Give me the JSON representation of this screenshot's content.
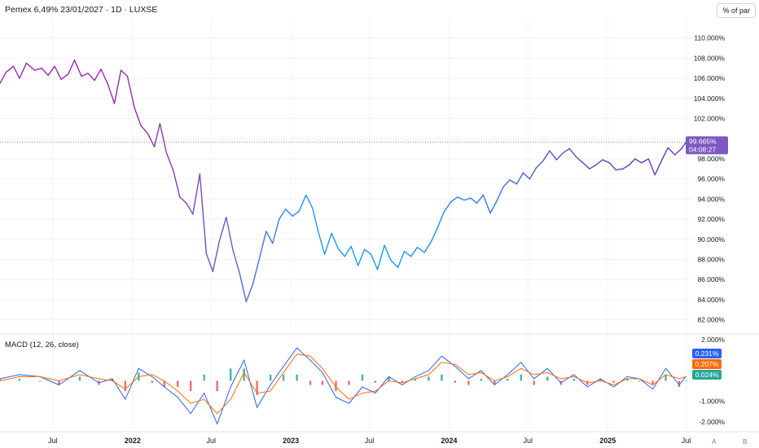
{
  "header": {
    "title": "Pemex 6,49% 23/01/2027 · 1D · LUXSE",
    "unit_button": "% of par"
  },
  "macd": {
    "title": "MACD (12, 26, close)"
  },
  "axis_buttons": {
    "auto": "A",
    "log": "B"
  },
  "colors": {
    "price_start": "#9c27b0",
    "price_mid": "#2196f3",
    "price_end": "#673ab7",
    "macd_line": "#2962ff",
    "signal_line": "#ff6d00",
    "hist_pos": "#26a69a",
    "hist_neg": "#ef5350",
    "last_price_label": "#7e57c2",
    "macd_label": "#2962ff",
    "signal_label": "#ff6d00",
    "hist_label": "#26a69a"
  },
  "chart_data": [
    {
      "type": "line",
      "title": "Pemex 6,49% 23/01/2027 · 1D · LUXSE",
      "ylabel": "% of par",
      "ylim": [
        81,
        112
      ],
      "x_range": [
        "2021-03-01",
        "2025-07-15"
      ],
      "yticks": [
        "82.000%",
        "84.000%",
        "86.000%",
        "88.000%",
        "90.000%",
        "92.000%",
        "94.000%",
        "96.000%",
        "98.000%",
        "100.000%",
        "102.000%",
        "104.000%",
        "106.000%",
        "108.000%",
        "110.000%"
      ],
      "xticks": [
        {
          "date": "2021-07-01",
          "label": "Jul"
        },
        {
          "date": "2022-01-01",
          "label": "2022"
        },
        {
          "date": "2022-07-01",
          "label": "Jul"
        },
        {
          "date": "2023-01-01",
          "label": "2023"
        },
        {
          "date": "2023-07-01",
          "label": "Jul"
        },
        {
          "date": "2024-01-01",
          "label": "2024"
        },
        {
          "date": "2024-07-01",
          "label": "Jul"
        },
        {
          "date": "2025-01-01",
          "label": "2025"
        },
        {
          "date": "2025-07-01",
          "label": "Jul"
        }
      ],
      "last_price": {
        "value": 99.665,
        "label": "99.665%",
        "countdown": "04:08:27"
      },
      "grid": true,
      "series": [
        {
          "x": [
            "2021-03-01",
            "2021-03-15",
            "2021-04-01",
            "2021-04-15",
            "2021-05-01",
            "2021-05-20",
            "2021-06-05",
            "2021-06-20",
            "2021-07-05",
            "2021-07-20",
            "2021-08-05",
            "2021-08-20",
            "2021-09-05",
            "2021-09-20",
            "2021-10-05",
            "2021-10-20",
            "2021-11-05",
            "2021-11-20",
            "2021-12-05",
            "2021-12-20",
            "2022-01-05",
            "2022-01-20",
            "2022-02-05",
            "2022-02-20",
            "2022-03-05",
            "2022-03-20",
            "2022-04-05",
            "2022-04-20",
            "2022-05-05",
            "2022-05-20",
            "2022-06-05",
            "2022-06-20",
            "2022-07-05",
            "2022-07-20",
            "2022-08-05",
            "2022-08-20",
            "2022-09-05",
            "2022-09-20",
            "2022-10-05",
            "2022-10-20",
            "2022-11-05",
            "2022-11-20",
            "2022-12-05",
            "2022-12-20",
            "2023-01-05",
            "2023-01-20",
            "2023-02-05",
            "2023-02-20",
            "2023-03-05",
            "2023-03-20",
            "2023-04-05",
            "2023-04-20",
            "2023-05-05",
            "2023-05-20",
            "2023-06-05",
            "2023-06-20",
            "2023-07-05",
            "2023-07-20",
            "2023-08-05",
            "2023-08-20",
            "2023-09-05",
            "2023-09-20",
            "2023-10-05",
            "2023-10-20",
            "2023-11-05",
            "2023-11-20",
            "2023-12-05",
            "2023-12-20",
            "2024-01-05",
            "2024-01-20",
            "2024-02-05",
            "2024-02-20",
            "2024-03-05",
            "2024-03-20",
            "2024-04-05",
            "2024-04-20",
            "2024-05-05",
            "2024-05-20",
            "2024-06-05",
            "2024-06-20",
            "2024-07-05",
            "2024-07-20",
            "2024-08-05",
            "2024-08-20",
            "2024-09-05",
            "2024-09-20",
            "2024-10-05",
            "2024-10-20",
            "2024-11-05",
            "2024-11-20",
            "2024-12-05",
            "2024-12-20",
            "2025-01-05",
            "2025-01-20",
            "2025-02-05",
            "2025-02-20",
            "2025-03-05",
            "2025-03-20",
            "2025-04-05",
            "2025-04-20",
            "2025-05-05",
            "2025-05-20",
            "2025-06-05",
            "2025-06-20",
            "2025-07-01"
          ],
          "values": [
            105.5,
            106.6,
            107.2,
            106.0,
            107.5,
            106.8,
            107.0,
            106.3,
            107.2,
            105.9,
            106.4,
            107.8,
            106.2,
            106.5,
            105.8,
            106.9,
            105.4,
            103.5,
            106.8,
            106.2,
            103.1,
            101.3,
            100.5,
            99.2,
            101.5,
            98.6,
            96.8,
            94.2,
            93.6,
            92.5,
            96.5,
            88.6,
            86.8,
            89.8,
            92.2,
            89.0,
            86.6,
            83.8,
            85.5,
            88.0,
            90.8,
            89.6,
            92.0,
            93.0,
            92.3,
            92.8,
            94.4,
            93.1,
            90.8,
            88.5,
            90.6,
            89.1,
            88.3,
            89.3,
            87.4,
            89.0,
            88.5,
            87.0,
            89.4,
            87.9,
            87.2,
            88.8,
            88.3,
            89.2,
            88.7,
            89.7,
            91.1,
            92.7,
            93.7,
            94.2,
            93.9,
            94.1,
            93.6,
            94.4,
            92.6,
            93.8,
            95.2,
            95.9,
            95.5,
            96.6,
            96.0,
            97.1,
            97.8,
            98.8,
            97.9,
            98.6,
            99.0,
            98.2,
            97.6,
            97.0,
            97.4,
            97.9,
            97.6,
            96.9,
            97.0,
            97.4,
            98.0,
            97.6,
            98.0,
            96.4,
            97.8,
            99.1,
            98.4,
            99.0,
            99.665
          ]
        }
      ]
    },
    {
      "type": "line",
      "title": "MACD (12, 26, close)",
      "ylim": [
        -2.4,
        2.2
      ],
      "yticks": [
        "-2.000%",
        "-1.000%",
        "2.000%"
      ],
      "labels": {
        "macd": "0.231%",
        "signal": "0.207%",
        "histogram": "0.024%"
      },
      "x": [
        "2021-03-01",
        "2021-04-15",
        "2021-06-01",
        "2021-07-15",
        "2021-09-01",
        "2021-10-15",
        "2021-11-15",
        "2021-12-15",
        "2022-01-15",
        "2022-02-15",
        "2022-03-15",
        "2022-04-15",
        "2022-05-15",
        "2022-06-15",
        "2022-07-15",
        "2022-08-15",
        "2022-09-15",
        "2022-10-15",
        "2022-11-15",
        "2022-12-15",
        "2023-01-15",
        "2023-02-15",
        "2023-03-15",
        "2023-04-15",
        "2023-05-15",
        "2023-06-15",
        "2023-07-15",
        "2023-08-15",
        "2023-09-15",
        "2023-10-15",
        "2023-11-15",
        "2023-12-15",
        "2024-01-15",
        "2024-02-15",
        "2024-03-15",
        "2024-04-15",
        "2024-05-15",
        "2024-06-15",
        "2024-07-15",
        "2024-08-15",
        "2024-09-15",
        "2024-10-15",
        "2024-11-15",
        "2024-12-15",
        "2025-01-15",
        "2025-02-15",
        "2025-03-15",
        "2025-04-15",
        "2025-05-15",
        "2025-06-15",
        "2025-07-01"
      ],
      "series": [
        {
          "name": "MACD",
          "values": [
            0.1,
            0.3,
            0.2,
            -0.2,
            0.5,
            -0.1,
            0.1,
            -0.9,
            0.6,
            0.2,
            -0.3,
            -0.8,
            -1.6,
            -0.6,
            -2.1,
            -0.3,
            1.0,
            -1.3,
            -0.2,
            0.7,
            1.6,
            1.0,
            0.4,
            -0.8,
            -1.1,
            -0.3,
            -0.6,
            0.2,
            -0.2,
            0.2,
            0.5,
            1.2,
            0.7,
            0.1,
            0.5,
            -0.2,
            0.3,
            0.9,
            0.1,
            0.6,
            -0.1,
            0.3,
            -0.3,
            0.1,
            -0.3,
            0.2,
            0.1,
            -0.4,
            0.6,
            -0.2,
            0.231
          ]
        },
        {
          "name": "Signal",
          "values": [
            0.0,
            0.2,
            0.2,
            0.0,
            0.3,
            0.1,
            0.0,
            -0.4,
            0.2,
            0.3,
            0.0,
            -0.5,
            -1.1,
            -0.9,
            -1.6,
            -0.9,
            0.4,
            -0.6,
            -0.5,
            0.4,
            1.3,
            1.2,
            0.6,
            -0.3,
            -0.9,
            -0.6,
            -0.5,
            0.0,
            -0.1,
            0.1,
            0.3,
            0.9,
            0.8,
            0.3,
            0.4,
            0.0,
            0.2,
            0.6,
            0.3,
            0.4,
            0.1,
            0.2,
            -0.1,
            0.0,
            -0.2,
            0.1,
            0.1,
            -0.2,
            0.3,
            0.1,
            0.207
          ]
        }
      ]
    }
  ]
}
